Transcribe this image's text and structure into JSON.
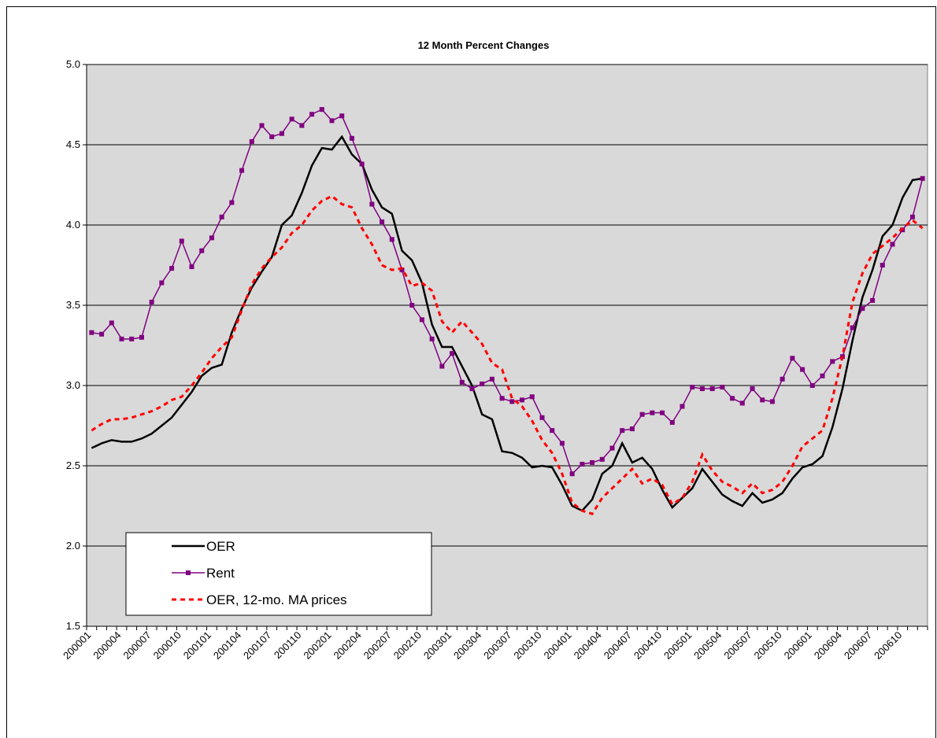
{
  "chart_data": {
    "type": "line",
    "title": "12 Month Percent Changes",
    "categories": [
      "200001",
      null,
      null,
      "200004",
      null,
      null,
      "200007",
      null,
      null,
      "200010",
      null,
      null,
      "200101",
      null,
      null,
      "200104",
      null,
      null,
      "200107",
      null,
      null,
      "200110",
      null,
      null,
      "200201",
      null,
      null,
      "200204",
      null,
      null,
      "200207",
      null,
      null,
      "200210",
      null,
      null,
      "200301",
      null,
      null,
      "200304",
      null,
      null,
      "200307",
      null,
      null,
      "200310",
      null,
      null,
      "200401",
      null,
      null,
      "200404",
      null,
      null,
      "200407",
      null,
      null,
      "200410",
      null,
      null,
      "200501",
      null,
      null,
      "200504",
      null,
      null,
      "200507",
      null,
      null,
      "200510",
      null,
      null,
      "200601",
      null,
      null,
      "200604",
      null,
      null,
      "200607",
      null,
      null,
      "200610",
      null,
      null
    ],
    "series": [
      {
        "name": "OER",
        "color": "#000000",
        "style": "solid",
        "values": [
          2.61,
          2.64,
          2.66,
          2.65,
          2.65,
          2.67,
          2.7,
          2.75,
          2.8,
          2.88,
          2.96,
          3.06,
          3.11,
          3.13,
          3.33,
          3.48,
          3.61,
          3.71,
          3.8,
          4.0,
          4.06,
          4.2,
          4.37,
          4.48,
          4.47,
          4.55,
          4.44,
          4.38,
          4.22,
          4.11,
          4.07,
          3.84,
          3.78,
          3.64,
          3.38,
          3.24,
          3.24,
          3.12,
          3.0,
          2.82,
          2.79,
          2.59,
          2.58,
          2.55,
          2.49,
          2.5,
          2.49,
          2.38,
          2.25,
          2.22,
          2.29,
          2.45,
          2.5,
          2.64,
          2.52,
          2.55,
          2.48,
          2.35,
          2.24,
          2.3,
          2.36,
          2.48,
          2.4,
          2.32,
          2.28,
          2.25,
          2.33,
          2.27,
          2.29,
          2.33,
          2.42,
          2.49,
          2.51,
          2.56,
          2.74,
          2.98,
          3.28,
          3.55,
          3.72,
          3.93,
          4.0,
          4.17,
          4.28,
          4.29
        ]
      },
      {
        "name": "Rent",
        "color": "#800080",
        "style": "markers",
        "values": [
          3.33,
          3.32,
          3.39,
          3.29,
          3.29,
          3.3,
          3.52,
          3.64,
          3.73,
          3.9,
          3.74,
          3.84,
          3.92,
          4.05,
          4.14,
          4.34,
          4.52,
          4.62,
          4.55,
          4.57,
          4.66,
          4.62,
          4.69,
          4.72,
          4.65,
          4.68,
          4.54,
          4.38,
          4.13,
          4.02,
          3.91,
          3.72,
          3.5,
          3.41,
          3.29,
          3.12,
          3.2,
          3.02,
          2.98,
          3.01,
          3.04,
          2.92,
          2.9,
          2.91,
          2.93,
          2.8,
          2.72,
          2.64,
          2.45,
          2.51,
          2.52,
          2.54,
          2.61,
          2.72,
          2.73,
          2.82,
          2.83,
          2.83,
          2.77,
          2.87,
          2.99,
          2.98,
          2.98,
          2.99,
          2.92,
          2.89,
          2.98,
          2.91,
          2.9,
          3.04,
          3.17,
          3.1,
          3.0,
          3.06,
          3.15,
          3.18,
          3.36,
          3.48,
          3.53,
          3.75,
          3.88,
          3.97,
          4.05,
          4.29
        ]
      },
      {
        "name": "OER, 12-mo. MA prices",
        "color": "#ff0000",
        "style": "dashed",
        "values": [
          2.72,
          2.76,
          2.79,
          2.79,
          2.8,
          2.82,
          2.84,
          2.87,
          2.91,
          2.93,
          3.0,
          3.08,
          3.17,
          3.24,
          3.3,
          3.47,
          3.63,
          3.73,
          3.8,
          3.86,
          3.95,
          4.0,
          4.09,
          4.15,
          4.18,
          4.13,
          4.11,
          3.98,
          3.88,
          3.75,
          3.72,
          3.73,
          3.62,
          3.64,
          3.59,
          3.4,
          3.33,
          3.4,
          3.33,
          3.26,
          3.14,
          3.1,
          2.92,
          2.87,
          2.78,
          2.66,
          2.58,
          2.45,
          2.27,
          2.22,
          2.2,
          2.3,
          2.36,
          2.42,
          2.48,
          2.39,
          2.42,
          2.38,
          2.26,
          2.3,
          2.4,
          2.57,
          2.47,
          2.4,
          2.37,
          2.33,
          2.39,
          2.33,
          2.35,
          2.4,
          2.5,
          2.62,
          2.67,
          2.72,
          2.92,
          3.18,
          3.52,
          3.7,
          3.82,
          3.87,
          3.92,
          3.98,
          4.03,
          3.98
        ]
      }
    ],
    "ylim": [
      1.5,
      5.0
    ],
    "yticks": [
      1.5,
      {
        "value": 2.0,
        "label": "2.0"
      },
      2.5,
      {
        "value": 3.0,
        "label": "3.0"
      },
      3.5,
      {
        "value": 4.0,
        "label": "4.0"
      },
      4.5,
      {
        "value": 5.0,
        "label": "5.0"
      }
    ],
    "grid": true,
    "legend": "lower left"
  }
}
